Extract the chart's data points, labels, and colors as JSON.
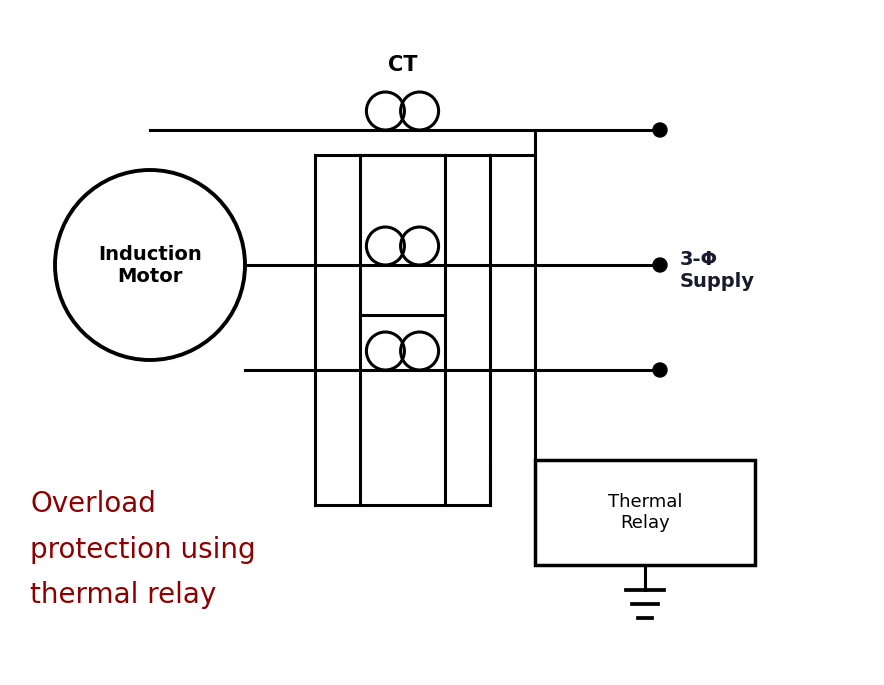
{
  "background_color": "#ffffff",
  "line_color": "#000000",
  "label_color_red": "#8B0000",
  "label_color_black": "#000000",
  "label_color_supply": "#1a1a2e",
  "motor_label": "Induction\nMotor",
  "ct_label": "CT",
  "supply_label": "3-Φ\nSupply",
  "bottom_label": "Overload\nprotection using\nthermal relay",
  "thermal_relay_label": "Thermal\nRelay",
  "lw": 2.2
}
